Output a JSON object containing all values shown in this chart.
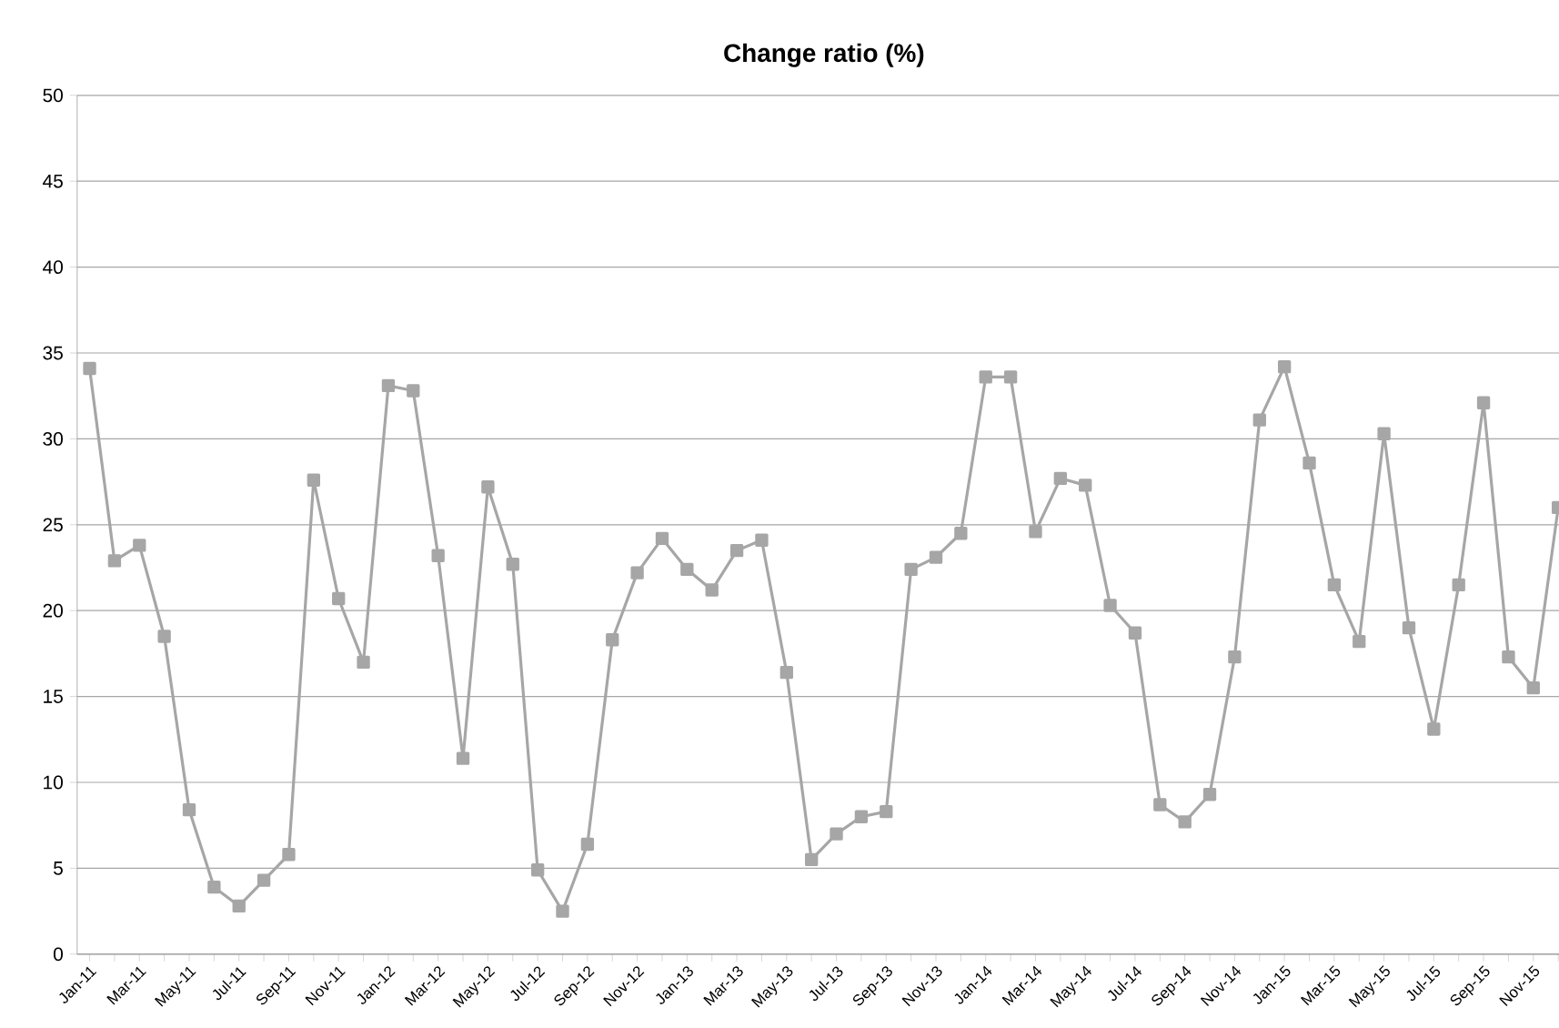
{
  "chart_data": {
    "type": "line",
    "title": "Change ratio (%)",
    "categories": [
      "Jan-11",
      null,
      "Mar-11",
      null,
      "May-11",
      null,
      "Jul-11",
      null,
      "Sep-11",
      null,
      "Nov-11",
      null,
      "Jan-12",
      null,
      "Mar-12",
      null,
      "May-12",
      null,
      "Jul-12",
      null,
      "Sep-12",
      null,
      "Nov-12",
      null,
      "Jan-13",
      null,
      "Mar-13",
      null,
      "May-13",
      null,
      "Jul-13",
      null,
      "Sep-13",
      null,
      "Nov-13",
      null,
      "Jan-14",
      null,
      "Mar-14",
      null,
      "May-14",
      null,
      "Jul-14",
      null,
      "Sep-14",
      null,
      "Nov-14",
      null,
      "Jan-15",
      null,
      "Mar-15",
      null,
      "May-15",
      null,
      "Jul-15",
      null,
      "Sep-15",
      null,
      "Nov-15",
      null
    ],
    "series": [
      {
        "color": "#a6a6a6",
        "values": [
          34.1,
          22.9,
          23.8,
          18.5,
          8.4,
          3.9,
          2.8,
          4.3,
          5.8,
          27.6,
          20.7,
          17.0,
          33.1,
          32.8,
          23.2,
          11.4,
          27.2,
          22.7,
          4.9,
          2.5,
          6.4,
          18.3,
          22.2,
          24.2,
          22.4,
          21.2,
          23.5,
          24.1,
          16.4,
          5.5,
          7.0,
          8.0,
          8.3,
          22.4,
          23.1,
          24.5,
          33.6,
          33.6,
          24.6,
          27.7,
          27.3,
          20.3,
          18.7,
          8.7,
          7.7,
          9.3,
          17.3,
          31.1,
          34.2,
          28.6,
          21.5,
          18.2,
          30.3,
          19.0,
          13.1,
          21.5,
          32.1,
          17.3,
          15.5,
          26.0
        ]
      }
    ],
    "ylim": [
      0,
      50
    ],
    "yticks": [
      0,
      5,
      10,
      15,
      20,
      25,
      30,
      35,
      40,
      45,
      50
    ],
    "grid": "y",
    "marker": "square",
    "line_style": "solid"
  }
}
